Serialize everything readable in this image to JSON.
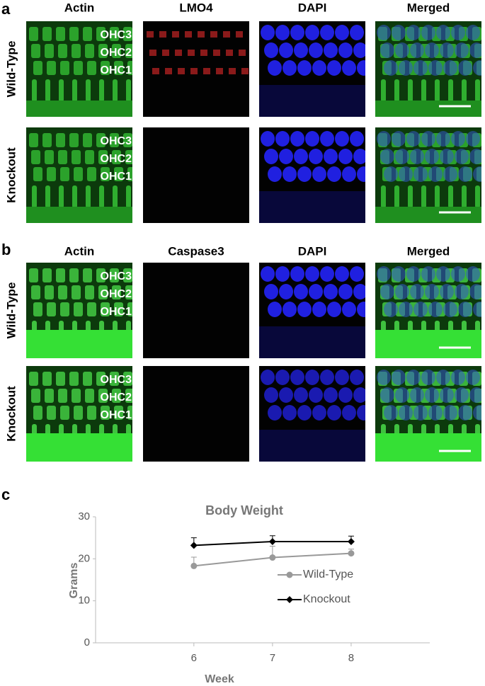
{
  "figure": {
    "panel_a": {
      "label": "a",
      "columns": [
        "Actin",
        "LMO4",
        "DAPI",
        "Merged"
      ],
      "rows": [
        "Wild-Type",
        "Knockout"
      ],
      "cell_labels": [
        "OHC3",
        "OHC2",
        "OHC1"
      ]
    },
    "panel_b": {
      "label": "b",
      "columns": [
        "Actin",
        "Caspase3",
        "DAPI",
        "Merged"
      ],
      "rows": [
        "Wild-Type",
        "Knockout"
      ],
      "cell_labels": [
        "OHC3",
        "OHC2",
        "OHC1"
      ]
    }
  },
  "chart_data": {
    "type": "line",
    "panel_label": "c",
    "title": "Body Weight",
    "x_label": "Week",
    "y_label": "Grams",
    "x": [
      6,
      7,
      8
    ],
    "xlim": [
      4.75,
      9
    ],
    "xticks": [
      6,
      7,
      8
    ],
    "ylim": [
      0,
      30
    ],
    "yticks": [
      0,
      10,
      20,
      30
    ],
    "grid": false,
    "legend": "right",
    "series": [
      {
        "name": "Wild-Type",
        "color": "#999999",
        "marker": "circle",
        "values": [
          18.3,
          20.3,
          21.3
        ],
        "errors": [
          2.1,
          2.7,
          1.0
        ]
      },
      {
        "name": "Knockout",
        "color": "#000000",
        "marker": "diamond",
        "values": [
          23.2,
          24.1,
          24.1
        ],
        "errors": [
          1.8,
          1.4,
          1.3
        ]
      }
    ]
  }
}
